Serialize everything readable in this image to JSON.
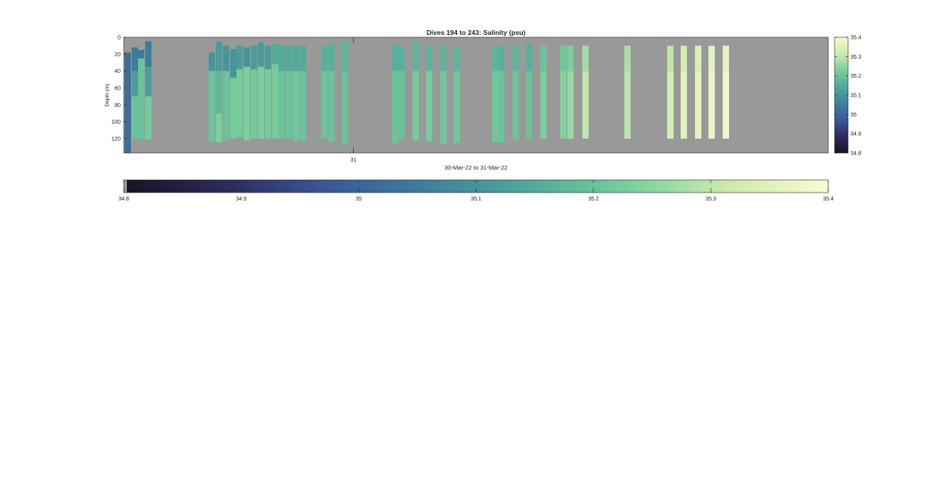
{
  "chart_data": {
    "type": "heatmap",
    "title": "Dives 194 to 243: Salinity (psu)",
    "xlabel": "30-Mar-22 to 31-Mar-22",
    "ylabel": "Depth (m)",
    "x_tick_labels": [
      "31"
    ],
    "y_ticks": [
      0,
      20,
      40,
      60,
      80,
      100,
      120
    ],
    "ylim": [
      0,
      137
    ],
    "y_reversed": true,
    "clim": [
      34.8,
      35.4
    ],
    "colorbar_ticks": [
      34.8,
      34.9,
      35,
      35.1,
      35.2,
      35.3,
      35.4
    ],
    "colorbar_tick_labels": [
      "34.8",
      "34.9",
      "35",
      "35.1",
      "35.2",
      "35.3",
      "35.4"
    ],
    "colormap_stops": [
      "#1a1224",
      "#2c2b5c",
      "#3a5896",
      "#3f7f9c",
      "#4fa89a",
      "#79cf9c",
      "#cceaae",
      "#fbfbd0"
    ],
    "nan_color": "#999999",
    "profiles": [
      {
        "segments": [
          [
            18,
            26,
            35.02
          ],
          [
            26,
            137,
            35.02
          ]
        ],
        "note": "partial"
      },
      {
        "segments": [
          [
            12,
            40,
            35.05
          ],
          [
            40,
            70,
            35.12
          ],
          [
            70,
            120,
            35.2
          ]
        ]
      },
      {
        "segments": [
          [
            15,
            25,
            35.05
          ],
          [
            25,
            120,
            35.2
          ]
        ]
      },
      {
        "segments": [
          [
            5,
            35,
            35.05
          ],
          [
            35,
            70,
            35.12
          ],
          [
            70,
            121,
            35.22
          ]
        ]
      },
      {
        "segments": [
          [
            18,
            40,
            35.1
          ],
          [
            40,
            124,
            35.2
          ]
        ]
      },
      {
        "segments": [
          [
            5,
            40,
            35.12
          ],
          [
            40,
            90,
            35.18
          ],
          [
            90,
            124,
            35.23
          ]
        ]
      },
      {
        "segments": [
          [
            10,
            40,
            35.1
          ],
          [
            40,
            122,
            35.2
          ]
        ]
      },
      {
        "segments": [
          [
            14,
            48,
            35.1
          ],
          [
            48,
            120,
            35.22
          ]
        ]
      },
      {
        "segments": [
          [
            10,
            38,
            35.12
          ],
          [
            38,
            118,
            35.22
          ]
        ]
      },
      {
        "segments": [
          [
            12,
            35,
            35.1
          ],
          [
            35,
            122,
            35.23
          ]
        ]
      },
      {
        "segments": [
          [
            10,
            38,
            35.12
          ],
          [
            38,
            120,
            35.22
          ]
        ]
      },
      {
        "segments": [
          [
            6,
            35,
            35.12
          ],
          [
            35,
            120,
            35.23
          ]
        ]
      },
      {
        "segments": [
          [
            10,
            38,
            35.12
          ],
          [
            38,
            120,
            35.22
          ]
        ]
      },
      {
        "segments": [
          [
            8,
            32,
            35.15
          ],
          [
            32,
            120,
            35.22
          ]
        ]
      },
      {
        "segments": [
          [
            10,
            40,
            35.15
          ],
          [
            40,
            120,
            35.2
          ]
        ]
      },
      {
        "segments": [
          [
            10,
            40,
            35.15
          ],
          [
            40,
            120,
            35.2
          ]
        ]
      },
      {
        "segments": [
          [
            10,
            40,
            35.15
          ],
          [
            40,
            122,
            35.21
          ]
        ]
      },
      {
        "segments": [
          [
            10,
            40,
            35.15
          ],
          [
            40,
            123,
            35.2
          ]
        ]
      },
      {
        "segments": [
          [
            10,
            40,
            35.16
          ],
          [
            40,
            120,
            35.2
          ]
        ]
      },
      {
        "segments": [
          [
            8,
            40,
            35.16
          ],
          [
            40,
            124,
            35.2
          ]
        ]
      },
      {
        "segments": [
          [
            4,
            40,
            35.17
          ],
          [
            40,
            127,
            35.2
          ]
        ]
      },
      {
        "segments": [
          [
            8,
            40,
            35.16
          ],
          [
            40,
            126,
            35.2
          ]
        ]
      },
      {
        "segments": [
          [
            12,
            40,
            35.16
          ],
          [
            40,
            120,
            35.2
          ]
        ]
      },
      {
        "segments": [
          [
            6,
            40,
            35.17
          ],
          [
            40,
            122,
            35.22
          ]
        ]
      },
      {
        "segments": [
          [
            10,
            40,
            35.17
          ],
          [
            40,
            123,
            35.22
          ]
        ]
      },
      {
        "segments": [
          [
            10,
            40,
            35.17
          ],
          [
            40,
            126,
            35.21
          ]
        ]
      },
      {
        "segments": [
          [
            12,
            40,
            35.17
          ],
          [
            40,
            125,
            35.21
          ]
        ]
      },
      {
        "segments": [
          [
            12,
            40,
            35.17
          ],
          [
            40,
            124,
            35.21
          ]
        ]
      },
      {
        "segments": [
          [
            10,
            40,
            35.16
          ],
          [
            40,
            125,
            35.2
          ]
        ]
      },
      {
        "segments": [
          [
            10,
            40,
            35.17
          ],
          [
            40,
            121,
            35.2
          ]
        ]
      },
      {
        "segments": [
          [
            8,
            40,
            35.16
          ],
          [
            40,
            120,
            35.2
          ]
        ]
      },
      {
        "segments": [
          [
            10,
            40,
            35.2
          ],
          [
            40,
            120,
            35.23
          ]
        ]
      },
      {
        "segments": [
          [
            10,
            40,
            35.21
          ],
          [
            40,
            120,
            35.24
          ]
        ]
      },
      {
        "segments": [
          [
            10,
            40,
            35.23
          ],
          [
            40,
            120,
            35.26
          ]
        ]
      },
      {
        "segments": [
          [
            10,
            40,
            35.27
          ],
          [
            40,
            120,
            35.3
          ]
        ]
      },
      {
        "segments": [
          [
            10,
            40,
            35.28
          ],
          [
            40,
            120,
            35.3
          ]
        ]
      },
      {
        "segments": [
          [
            10,
            40,
            35.3
          ],
          [
            40,
            120,
            35.33
          ]
        ]
      },
      {
        "segments": [
          [
            10,
            40,
            35.33
          ],
          [
            40,
            120,
            35.35
          ]
        ]
      },
      {
        "segments": [
          [
            10,
            40,
            35.34
          ],
          [
            40,
            120,
            35.36
          ]
        ]
      },
      {
        "segments": [
          [
            10,
            40,
            35.35
          ],
          [
            40,
            120,
            35.37
          ]
        ]
      },
      {
        "segments": [
          [
            10,
            40,
            35.36
          ],
          [
            40,
            120,
            35.38
          ]
        ]
      }
    ]
  }
}
